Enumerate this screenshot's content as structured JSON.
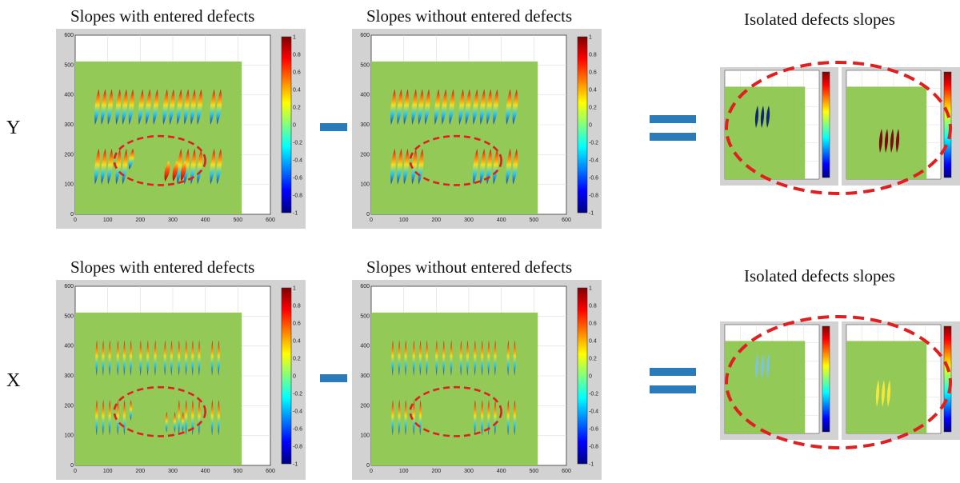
{
  "row_labels": [
    "Y",
    "X"
  ],
  "titles": {
    "with": "Slopes with entered defects",
    "without": "Slopes without entered defects",
    "isolated": "Isolated defects slopes"
  },
  "axes": {
    "x_ticks": [
      "0",
      "100",
      "200",
      "300",
      "400",
      "500",
      "600"
    ],
    "y_ticks": [
      "0",
      "100",
      "200",
      "300",
      "400",
      "500",
      "600"
    ],
    "colorbar_ticks": [
      "1",
      "0.8",
      "0.6",
      "0.4",
      "0.2",
      "0",
      "-0.2",
      "-0.4",
      "-0.6",
      "-0.8",
      "-1"
    ]
  },
  "colors": {
    "green_field": "#93c956",
    "plot_bg": "#ffffff",
    "frame_bg": "#d2d2d2",
    "ellipse": "#e02020",
    "operator": "#2b7bb9"
  }
}
